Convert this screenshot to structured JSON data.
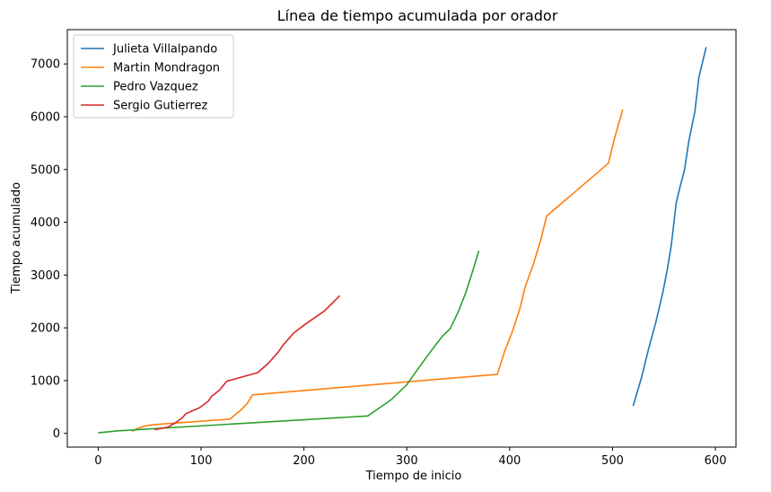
{
  "chart_data": {
    "type": "line",
    "title": "Línea de tiempo acumulada por orador",
    "xlabel": "Tiempo de inicio",
    "ylabel": "Tiempo acumulado",
    "xlim": [
      -30,
      620
    ],
    "ylim": [
      -260,
      7650
    ],
    "xticks": [
      0,
      100,
      200,
      300,
      400,
      500,
      600
    ],
    "yticks": [
      0,
      1000,
      2000,
      3000,
      4000,
      5000,
      6000,
      7000
    ],
    "grid": false,
    "legend_position": "top-left",
    "series": [
      {
        "name": "Julieta Villalpando",
        "color": "#1f77b4",
        "points": [
          [
            520,
            520
          ],
          [
            528,
            1050
          ],
          [
            535,
            1600
          ],
          [
            542,
            2100
          ],
          [
            549,
            2680
          ],
          [
            553,
            3080
          ],
          [
            557,
            3550
          ],
          [
            562,
            4380
          ],
          [
            566,
            4700
          ],
          [
            570,
            5000
          ],
          [
            574,
            5520
          ],
          [
            580,
            6100
          ],
          [
            584,
            6750
          ],
          [
            591,
            7320
          ]
        ]
      },
      {
        "name": "Martin Mondragon",
        "color": "#ff7f0e",
        "points": [
          [
            33,
            40
          ],
          [
            38,
            90
          ],
          [
            45,
            140
          ],
          [
            52,
            160
          ],
          [
            65,
            180
          ],
          [
            100,
            230
          ],
          [
            128,
            270
          ],
          [
            138,
            430
          ],
          [
            145,
            570
          ],
          [
            150,
            730
          ],
          [
            388,
            1120
          ],
          [
            395,
            1550
          ],
          [
            403,
            1950
          ],
          [
            410,
            2370
          ],
          [
            415,
            2770
          ],
          [
            423,
            3200
          ],
          [
            430,
            3650
          ],
          [
            436,
            4120
          ],
          [
            465,
            4600
          ],
          [
            496,
            5120
          ],
          [
            502,
            5600
          ],
          [
            510,
            6140
          ]
        ]
      },
      {
        "name": "Pedro Vazquez",
        "color": "#2ca02c",
        "points": [
          [
            0,
            10
          ],
          [
            20,
            50
          ],
          [
            262,
            330
          ],
          [
            285,
            640
          ],
          [
            300,
            920
          ],
          [
            310,
            1200
          ],
          [
            325,
            1600
          ],
          [
            335,
            1850
          ],
          [
            342,
            1980
          ],
          [
            350,
            2300
          ],
          [
            357,
            2650
          ],
          [
            362,
            2950
          ],
          [
            366,
            3200
          ],
          [
            370,
            3460
          ]
        ]
      },
      {
        "name": "Sergio Gutierrez",
        "color": "#d62728",
        "points": [
          [
            55,
            70
          ],
          [
            68,
            120
          ],
          [
            75,
            200
          ],
          [
            82,
            300
          ],
          [
            85,
            370
          ],
          [
            92,
            430
          ],
          [
            98,
            480
          ],
          [
            103,
            550
          ],
          [
            107,
            610
          ],
          [
            110,
            700
          ],
          [
            118,
            820
          ],
          [
            125,
            990
          ],
          [
            155,
            1150
          ],
          [
            165,
            1320
          ],
          [
            175,
            1540
          ],
          [
            180,
            1680
          ],
          [
            190,
            1900
          ],
          [
            200,
            2050
          ],
          [
            220,
            2320
          ],
          [
            235,
            2610
          ]
        ]
      }
    ]
  }
}
